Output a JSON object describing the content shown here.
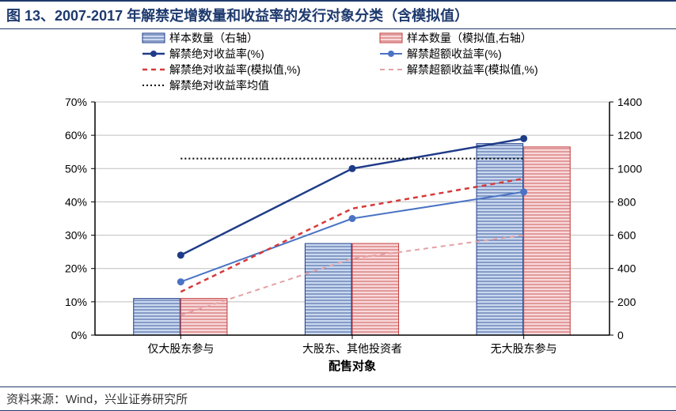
{
  "title": "图 13、2007-2017 年解禁定增数量和收益率的发行对象分类（含模拟值）",
  "source": "资料来源：Wind，兴业证券研究所",
  "chart": {
    "type": "combo-bar-line",
    "categories": [
      "仅大股东参与",
      "大股东、其他投资者",
      "无大股东参与"
    ],
    "x_axis_title": "配售对象",
    "y_left": {
      "min": 0,
      "max": 70,
      "step": 10,
      "suffix": "%"
    },
    "y_right": {
      "min": 0,
      "max": 1400,
      "step": 200
    },
    "bars": [
      {
        "name": "样本数量（右轴）",
        "values": [
          220,
          550,
          1150
        ],
        "fill": "#c9d9ef",
        "stroke": "#1f3c88",
        "hatch": "horiz"
      },
      {
        "name": "样本数量（模拟值,右轴）",
        "values": [
          220,
          550,
          1130
        ],
        "fill": "#f8d9db",
        "stroke": "#c23a3a",
        "hatch": "horiz"
      }
    ],
    "lines": [
      {
        "name": "解禁绝对收益率(%)",
        "values": [
          24,
          50,
          59
        ],
        "color": "#1f3c88",
        "width": 2.5,
        "marker": "circle",
        "dash": ""
      },
      {
        "name": "解禁超额收益率(%)",
        "values": [
          16,
          35,
          43
        ],
        "color": "#4a73c4",
        "width": 2,
        "marker": "circle",
        "dash": ""
      },
      {
        "name": "解禁绝对收益率(模拟值,%)",
        "values": [
          13,
          38,
          47
        ],
        "color": "#d63a3a",
        "width": 2.5,
        "marker": "",
        "dash": "6 5"
      },
      {
        "name": "解禁超额收益率(模拟值,%)",
        "values": [
          6,
          23,
          30
        ],
        "color": "#e4a1a5",
        "width": 2,
        "marker": "",
        "dash": "6 5"
      },
      {
        "name": "解禁绝对收益率均值",
        "values": [
          53,
          53,
          53
        ],
        "color": "#000000",
        "width": 2,
        "marker": "",
        "dash": "2 3"
      }
    ],
    "colors": {
      "axis": "#000000",
      "grid": "#bfbfbf",
      "plot_bg": "#ffffff"
    },
    "fontsize": {
      "tick": 14,
      "axis_title": 15,
      "legend": 14
    },
    "bar_group_width": 0.55
  }
}
